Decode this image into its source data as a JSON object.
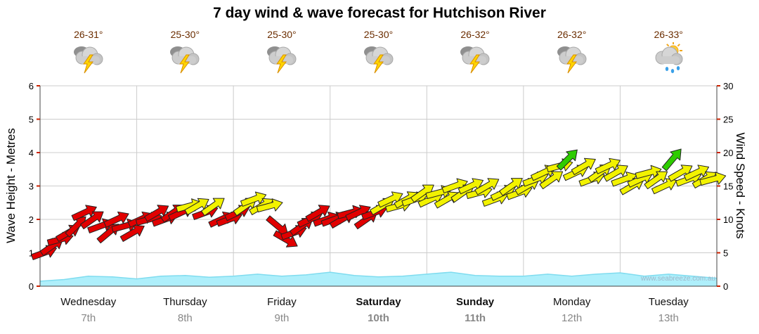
{
  "title": "7 day wind & wave forecast for Hutchison River",
  "watermark": "www.seabreeze.com.au",
  "axes": {
    "left_label": "Wave Height - Metres",
    "right_label": "Wind Speed - Knots",
    "wave_ticks": [
      0,
      1,
      2,
      3,
      4,
      5,
      6
    ],
    "wind_ticks": [
      0,
      5,
      10,
      15,
      20,
      25,
      30
    ]
  },
  "days": [
    {
      "name": "Wednesday",
      "date": "7th",
      "temp": "26-31°",
      "icon": "thunderstorm",
      "bold": false
    },
    {
      "name": "Thursday",
      "date": "8th",
      "temp": "25-30°",
      "icon": "thunderstorm",
      "bold": false
    },
    {
      "name": "Friday",
      "date": "9th",
      "temp": "25-30°",
      "icon": "thunderstorm",
      "bold": false
    },
    {
      "name": "Saturday",
      "date": "10th",
      "temp": "25-30°",
      "icon": "thunderstorm",
      "bold": true
    },
    {
      "name": "Sunday",
      "date": "11th",
      "temp": "26-32°",
      "icon": "thunderstorm",
      "bold": true
    },
    {
      "name": "Monday",
      "date": "12th",
      "temp": "26-32°",
      "icon": "thunderstorm",
      "bold": false
    },
    {
      "name": "Tuesday",
      "date": "13th",
      "temp": "26-33°",
      "icon": "sun-showers",
      "bold": false
    }
  ],
  "chart_data": {
    "type": "area",
    "title": "7 day wind & wave forecast for Hutchison River",
    "categories": [
      "Wednesday 7th",
      "Thursday 8th",
      "Friday 9th",
      "Saturday 10th",
      "Sunday 11th",
      "Monday 12th",
      "Tuesday 13th"
    ],
    "wind": {
      "name": "Wind Speed",
      "units": "knots",
      "ylim": [
        0,
        30
      ],
      "points_per_day": 12,
      "color_bands": {
        "light_red_max": 11,
        "moderate_yellow_max": 18,
        "fresh_green_min": 19
      },
      "days": [
        {
          "day": "Wednesday",
          "knots": [
            5,
            6,
            7,
            8,
            9,
            11,
            10,
            9,
            8,
            10,
            9,
            8
          ],
          "dirs_deg": [
            20,
            35,
            15,
            30,
            45,
            25,
            35,
            20,
            40,
            25,
            15,
            30
          ]
        },
        {
          "day": "Thursday",
          "knots": [
            10,
            10,
            11,
            10,
            11,
            11,
            12,
            12,
            11,
            12,
            10,
            10
          ],
          "dirs_deg": [
            25,
            15,
            30,
            20,
            35,
            25,
            15,
            30,
            20,
            35,
            25,
            20
          ]
        },
        {
          "day": "Friday",
          "knots": [
            11,
            12,
            13,
            12,
            12,
            9,
            7,
            8,
            9,
            10,
            11,
            10
          ],
          "dirs_deg": [
            25,
            35,
            20,
            30,
            15,
            -40,
            -30,
            20,
            35,
            25,
            30,
            20
          ]
        },
        {
          "day": "Saturday",
          "knots": [
            10,
            10,
            11,
            11,
            10,
            11,
            12,
            13,
            12,
            13,
            13,
            14
          ],
          "dirs_deg": [
            20,
            30,
            15,
            25,
            35,
            20,
            30,
            25,
            15,
            30,
            20,
            35
          ]
        },
        {
          "day": "Sunday",
          "knots": [
            13,
            14,
            13,
            15,
            14,
            15,
            14,
            15,
            13,
            14,
            15,
            14
          ],
          "dirs_deg": [
            25,
            15,
            30,
            20,
            35,
            25,
            15,
            30,
            20,
            25,
            35,
            20
          ]
        },
        {
          "day": "Monday",
          "knots": [
            15,
            16,
            17,
            16,
            18,
            19,
            17,
            18,
            16,
            17,
            18,
            17
          ],
          "dirs_deg": [
            30,
            20,
            25,
            35,
            15,
            45,
            25,
            30,
            20,
            35,
            25,
            30
          ]
        },
        {
          "day": "Tuesday",
          "knots": [
            16,
            15,
            16,
            17,
            16,
            15,
            19,
            17,
            16,
            17,
            16,
            16
          ],
          "dirs_deg": [
            20,
            30,
            25,
            15,
            35,
            25,
            50,
            30,
            20,
            25,
            30,
            15
          ]
        }
      ]
    },
    "wave": {
      "name": "Wave Height",
      "units": "metres",
      "ylim": [
        0,
        6
      ],
      "samples_per_day": 4,
      "heights": [
        0.15,
        0.2,
        0.3,
        0.28,
        0.22,
        0.3,
        0.32,
        0.27,
        0.3,
        0.36,
        0.3,
        0.34,
        0.42,
        0.32,
        0.28,
        0.3,
        0.36,
        0.42,
        0.32,
        0.3,
        0.3,
        0.36,
        0.3,
        0.36,
        0.4,
        0.3,
        0.36,
        0.3,
        0.24
      ]
    }
  },
  "colors": {
    "arrow_red": "#e10000",
    "arrow_yellow": "#f2f200",
    "arrow_green": "#2ecc00",
    "arrow_outline": "#222222",
    "wave_fill": "#aeeffb",
    "wave_line": "#7fdcef",
    "grid": "#cccccc",
    "frame": "#444444",
    "tick": "#cc2200",
    "tick_text": "#000000",
    "day_text": "#111111",
    "date_text": "#888888",
    "temp_text": "#6b2d00"
  }
}
